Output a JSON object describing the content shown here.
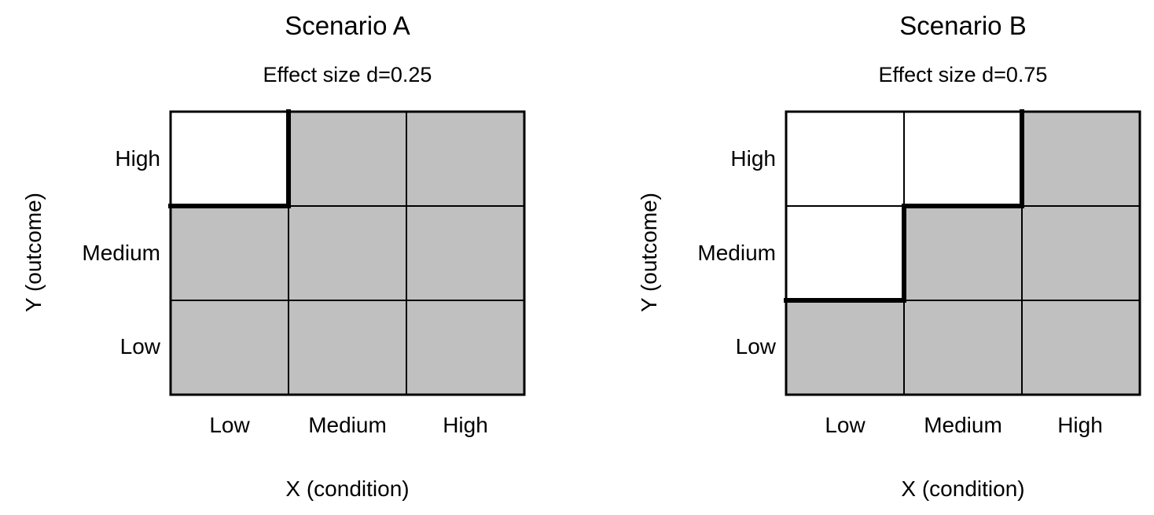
{
  "colors": {
    "filled_cell": "#c0c0c0",
    "empty_cell": "#ffffff",
    "grid_line": "#000000",
    "boundary_line": "#000000"
  },
  "panels": [
    {
      "title": "Scenario A",
      "subtitle": "Effect size d=0.25",
      "x_axis_label": "X (condition)",
      "y_axis_label": "Y (outcome)",
      "x_ticks": [
        "Low",
        "Medium",
        "High"
      ],
      "y_ticks": [
        "High",
        "Medium",
        "Low"
      ],
      "cells": [
        [
          false,
          true,
          true
        ],
        [
          true,
          true,
          true
        ],
        [
          true,
          true,
          true
        ]
      ]
    },
    {
      "title": "Scenario B",
      "subtitle": "Effect size d=0.75",
      "x_axis_label": "X (condition)",
      "y_axis_label": "Y (outcome)",
      "x_ticks": [
        "Low",
        "Medium",
        "High"
      ],
      "y_ticks": [
        "High",
        "Medium",
        "Low"
      ],
      "cells": [
        [
          false,
          false,
          true
        ],
        [
          false,
          true,
          true
        ],
        [
          true,
          true,
          true
        ]
      ]
    }
  ]
}
